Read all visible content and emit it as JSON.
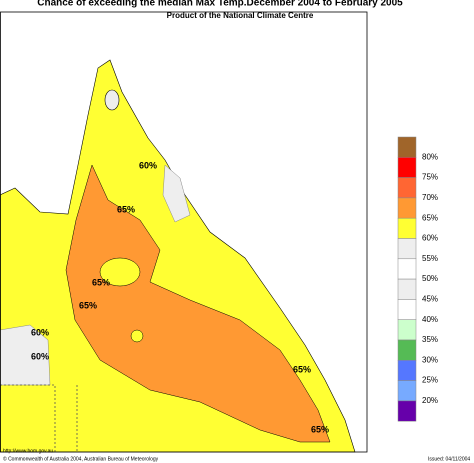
{
  "header": {
    "title": "Chance of exceeding the median Max Temp.December 2004 to February 2005",
    "subtitle": "Product of the National Climate Centre"
  },
  "legend": {
    "colors": [
      "#a0652a",
      "#ff0000",
      "#ff6633",
      "#ff9933",
      "#ffff33",
      "#eeeeee",
      "#ffffff",
      "#eeeeee",
      "#ffffff",
      "#ccffcc",
      "#55bb55",
      "#5577ff",
      "#77aaff",
      "#6600aa"
    ],
    "labels": [
      "80%",
      "75%",
      "70%",
      "65%",
      "60%",
      "55%",
      "50%",
      "45%",
      "40%",
      "35%",
      "30%",
      "25%",
      "20%"
    ]
  },
  "map": {
    "contour_labels": [
      "60%",
      "65%",
      "65%",
      "65%",
      "60%",
      "60%",
      "65%",
      "65%"
    ]
  },
  "footer": {
    "url": "http://www.bom.gov.au",
    "copyright": "© Commonwealth of Australia 2004, Australian Bureau of Meteorology",
    "issued": "Issued: 04/11/2004"
  }
}
